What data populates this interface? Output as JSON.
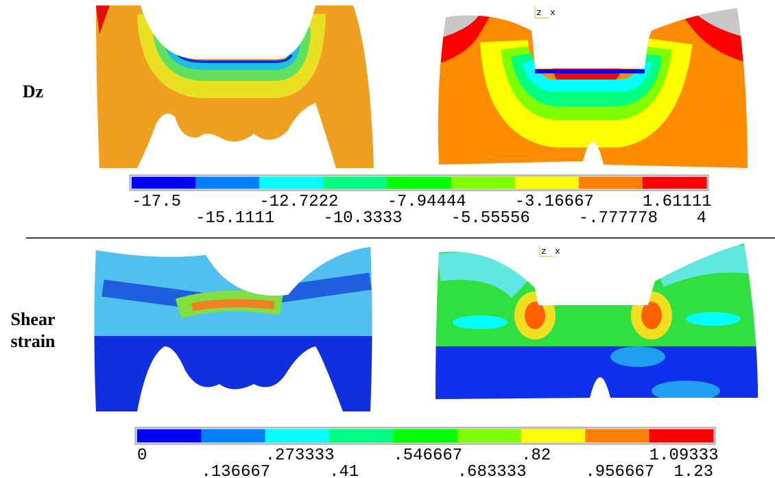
{
  "colormap": [
    "#0000ff",
    "#0080ff",
    "#00ffff",
    "#00ff80",
    "#00ff00",
    "#80ff00",
    "#ffff00",
    "#ff8000",
    "#ff0000"
  ],
  "rows": [
    {
      "label": [
        "Dz"
      ],
      "triad": {
        "z": "z",
        "x": "x"
      },
      "legend": [
        "-17.5",
        "-15.1111",
        "-12.7222",
        "-10.3333",
        "-7.94444",
        "-5.55556",
        "-3.16667",
        "-.777778",
        "1.61111",
        "4"
      ]
    },
    {
      "label": [
        "Shear",
        "strain"
      ],
      "triad": {
        "z": "z",
        "x": "x"
      },
      "legend": [
        "0",
        ".136667",
        ".273333",
        ".41",
        ".546667",
        ".683333",
        ".82",
        ".956667",
        "1.09333",
        "1.23"
      ]
    }
  ]
}
